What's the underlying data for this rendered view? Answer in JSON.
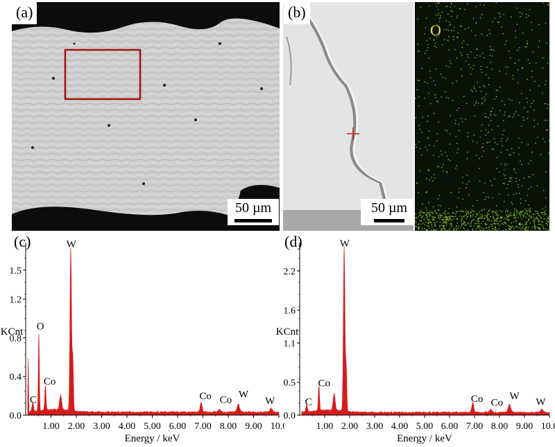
{
  "panels": {
    "a": {
      "label": "(a)",
      "scale": "50 µm"
    },
    "b": {
      "label": "(b)",
      "scale": "50 µm",
      "map_element": "O"
    },
    "c": {
      "label": "(c)"
    },
    "d": {
      "label": "(d)"
    }
  },
  "colors": {
    "spectrum": "#d61b1b",
    "roi_box": "#a01010",
    "map_dots": "#8ccf2a",
    "map_label": "#e8e040"
  },
  "chart_data": [
    {
      "type": "area",
      "title": "",
      "xlabel": "Energy / keV",
      "ylabel": "KCnt",
      "xlim": [
        0,
        10
      ],
      "ylim": [
        0,
        1.75
      ],
      "xticks": [
        "1.00",
        "2.00",
        "3.00",
        "4.00",
        "5.00",
        "6.00",
        "7.00",
        "8.00",
        "9.00",
        "10.0"
      ],
      "yticks": [
        {
          "v": 0.0,
          "t": "0.0"
        },
        {
          "v": 0.4,
          "t": "0.4"
        },
        {
          "v": 0.8,
          "t": "0.8"
        },
        {
          "v": 1.2,
          "t": "1.2"
        },
        {
          "v": 1.5,
          "t": "1.5"
        }
      ],
      "baseline": 0.03,
      "peaks": [
        {
          "x": 0.1,
          "y": 0.55,
          "w": 0.012
        },
        {
          "x": 0.28,
          "y": 0.1,
          "w": 0.03
        },
        {
          "x": 0.52,
          "y": 0.8,
          "w": 0.02
        },
        {
          "x": 0.78,
          "y": 0.25,
          "w": 0.025
        },
        {
          "x": 1.38,
          "y": 0.15,
          "w": 0.04
        },
        {
          "x": 1.78,
          "y": 1.68,
          "w": 0.03
        },
        {
          "x": 1.86,
          "y": 0.55,
          "w": 0.025
        },
        {
          "x": 6.93,
          "y": 0.1,
          "w": 0.04
        },
        {
          "x": 7.65,
          "y": 0.03,
          "w": 0.04
        },
        {
          "x": 8.4,
          "y": 0.08,
          "w": 0.05
        },
        {
          "x": 9.7,
          "y": 0.04,
          "w": 0.05
        }
      ],
      "annotations": [
        {
          "text": "C",
          "x": 0.3,
          "y": 0.11
        },
        {
          "text": "O",
          "x": 0.58,
          "y": 0.87
        },
        {
          "text": "Co",
          "x": 0.95,
          "y": 0.3
        },
        {
          "text": "W",
          "x": 1.8,
          "y": 1.72
        },
        {
          "text": "Co",
          "x": 7.1,
          "y": 0.15
        },
        {
          "text": "Co",
          "x": 7.9,
          "y": 0.11
        },
        {
          "text": "W",
          "x": 8.6,
          "y": 0.17
        },
        {
          "text": "W",
          "x": 9.65,
          "y": 0.1
        }
      ]
    },
    {
      "type": "area",
      "title": "",
      "xlabel": "Energy / keV",
      "ylabel": "KCnt",
      "xlim": [
        0,
        10
      ],
      "ylim": [
        0,
        2.58
      ],
      "xticks": [
        "1.00",
        "2.00",
        "3.00",
        "4.00",
        "5.00",
        "6.00",
        "7.00",
        "8.00",
        "9.00",
        "10.0"
      ],
      "yticks": [
        {
          "v": 0.0,
          "t": "0.0"
        },
        {
          "v": 0.5,
          "t": "0.5"
        },
        {
          "v": 1.1,
          "t": "1.1"
        },
        {
          "v": 1.6,
          "t": "1.6"
        },
        {
          "v": 2.2,
          "t": "2.2"
        }
      ],
      "baseline": 0.04,
      "peaks": [
        {
          "x": 0.28,
          "y": 0.12,
          "w": 0.03
        },
        {
          "x": 0.77,
          "y": 0.38,
          "w": 0.025
        },
        {
          "x": 1.38,
          "y": 0.25,
          "w": 0.04
        },
        {
          "x": 1.78,
          "y": 2.5,
          "w": 0.03
        },
        {
          "x": 1.86,
          "y": 0.7,
          "w": 0.025
        },
        {
          "x": 6.93,
          "y": 0.15,
          "w": 0.04
        },
        {
          "x": 7.65,
          "y": 0.05,
          "w": 0.04
        },
        {
          "x": 8.4,
          "y": 0.12,
          "w": 0.05
        },
        {
          "x": 9.7,
          "y": 0.05,
          "w": 0.05
        }
      ],
      "annotations": [
        {
          "text": "C",
          "x": 0.35,
          "y": 0.13
        },
        {
          "text": "Co",
          "x": 0.98,
          "y": 0.42
        },
        {
          "text": "W",
          "x": 1.8,
          "y": 2.55
        },
        {
          "text": "Co",
          "x": 7.1,
          "y": 0.18
        },
        {
          "text": "Co",
          "x": 7.9,
          "y": 0.12
        },
        {
          "text": "W",
          "x": 8.6,
          "y": 0.22
        },
        {
          "text": "W",
          "x": 9.65,
          "y": 0.13
        }
      ]
    }
  ]
}
